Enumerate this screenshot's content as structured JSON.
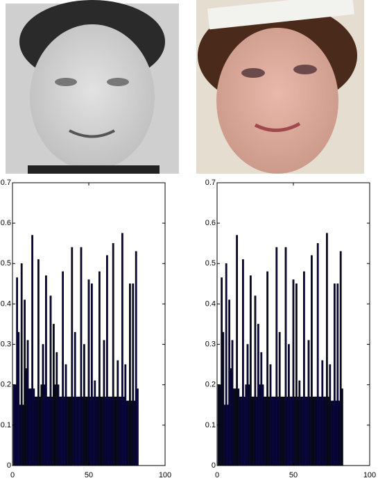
{
  "chart_data": [
    {
      "type": "bar",
      "color": "#0a0a3c",
      "edge": "#000000",
      "x": [
        1,
        2,
        3,
        4,
        5,
        6,
        7,
        8,
        9,
        10,
        11,
        12,
        13,
        14,
        15,
        16,
        17,
        18,
        19,
        20,
        21,
        22,
        23,
        24,
        25,
        26,
        27,
        28,
        29,
        30,
        31,
        32,
        33,
        34,
        35,
        36,
        37,
        38,
        39,
        40,
        41,
        42,
        43,
        44,
        45,
        46,
        47,
        48,
        49,
        50,
        51,
        52,
        53,
        54,
        55,
        56,
        57,
        58,
        59,
        60,
        61,
        62,
        63,
        64,
        65,
        66,
        67,
        68,
        69,
        70,
        71,
        72,
        73,
        74,
        75,
        76,
        77,
        78,
        79,
        80,
        81,
        82
      ],
      "values": [
        0.2,
        0.2,
        0.465,
        0.33,
        0.15,
        0.5,
        0.15,
        0.41,
        0.24,
        0.31,
        0.19,
        0.19,
        0.57,
        0.19,
        0.17,
        0.17,
        0.51,
        0.17,
        0.2,
        0.3,
        0.2,
        0.47,
        0.17,
        0.17,
        0.42,
        0.17,
        0.35,
        0.2,
        0.28,
        0.2,
        0.17,
        0.17,
        0.48,
        0.17,
        0.25,
        0.17,
        0.17,
        0.17,
        0.54,
        0.17,
        0.33,
        0.17,
        0.17,
        0.17,
        0.54,
        0.17,
        0.3,
        0.17,
        0.17,
        0.46,
        0.17,
        0.45,
        0.17,
        0.21,
        0.17,
        0.17,
        0.48,
        0.17,
        0.17,
        0.31,
        0.17,
        0.52,
        0.17,
        0.17,
        0.17,
        0.55,
        0.17,
        0.17,
        0.26,
        0.17,
        0.17,
        0.575,
        0.17,
        0.25,
        0.16,
        0.16,
        0.45,
        0.16,
        0.45,
        0.16,
        0.53,
        0.19
      ],
      "xlim": [
        0,
        100
      ],
      "xticks": [
        0,
        50,
        100
      ],
      "ylim": [
        0,
        0.7
      ],
      "yticks": [
        0,
        0.1,
        0.2,
        0.3,
        0.4,
        0.5,
        0.6,
        0.7
      ]
    },
    {
      "type": "bar",
      "color": "#0a0a3c",
      "edge": "#000000",
      "x": [
        1,
        2,
        3,
        4,
        5,
        6,
        7,
        8,
        9,
        10,
        11,
        12,
        13,
        14,
        15,
        16,
        17,
        18,
        19,
        20,
        21,
        22,
        23,
        24,
        25,
        26,
        27,
        28,
        29,
        30,
        31,
        32,
        33,
        34,
        35,
        36,
        37,
        38,
        39,
        40,
        41,
        42,
        43,
        44,
        45,
        46,
        47,
        48,
        49,
        50,
        51,
        52,
        53,
        54,
        55,
        56,
        57,
        58,
        59,
        60,
        61,
        62,
        63,
        64,
        65,
        66,
        67,
        68,
        69,
        70,
        71,
        72,
        73,
        74,
        75,
        76,
        77,
        78,
        79,
        80,
        81,
        82
      ],
      "values": [
        0.2,
        0.2,
        0.465,
        0.33,
        0.15,
        0.5,
        0.15,
        0.41,
        0.24,
        0.31,
        0.19,
        0.19,
        0.57,
        0.19,
        0.17,
        0.17,
        0.51,
        0.17,
        0.2,
        0.3,
        0.2,
        0.47,
        0.17,
        0.17,
        0.42,
        0.17,
        0.35,
        0.2,
        0.28,
        0.2,
        0.17,
        0.17,
        0.48,
        0.17,
        0.25,
        0.17,
        0.17,
        0.17,
        0.54,
        0.17,
        0.33,
        0.17,
        0.17,
        0.17,
        0.54,
        0.17,
        0.3,
        0.17,
        0.17,
        0.46,
        0.17,
        0.45,
        0.17,
        0.21,
        0.17,
        0.17,
        0.48,
        0.17,
        0.17,
        0.31,
        0.17,
        0.52,
        0.17,
        0.17,
        0.17,
        0.55,
        0.17,
        0.17,
        0.26,
        0.17,
        0.17,
        0.575,
        0.17,
        0.25,
        0.16,
        0.16,
        0.45,
        0.16,
        0.45,
        0.16,
        0.53,
        0.19
      ],
      "xlim": [
        0,
        100
      ],
      "xticks": [
        0,
        50,
        100
      ],
      "ylim": [
        0,
        0.7
      ],
      "yticks": [
        0,
        0.1,
        0.2,
        0.3,
        0.4,
        0.5,
        0.6,
        0.7
      ]
    }
  ]
}
